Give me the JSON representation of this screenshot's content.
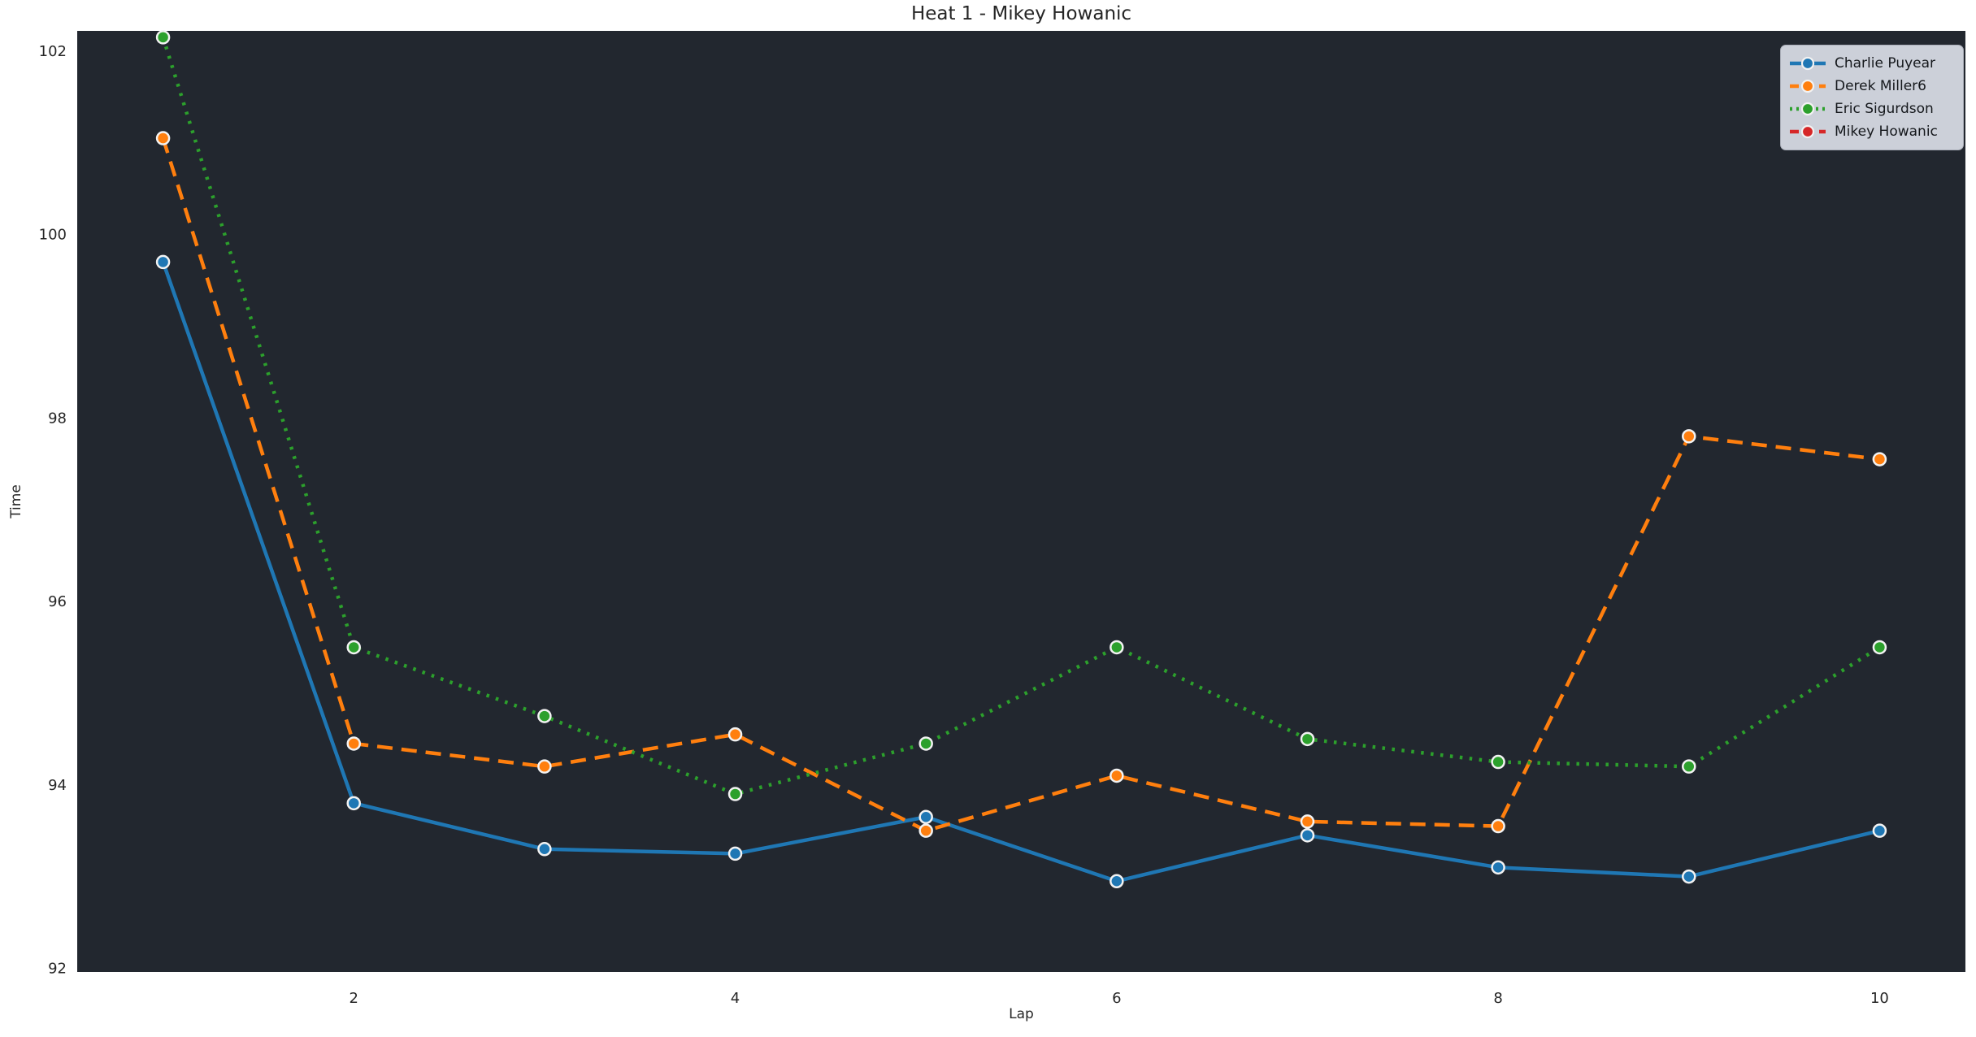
{
  "window": {
    "title": "Heat 1 - Mikey Howanic"
  },
  "chart_data": {
    "type": "line",
    "title": "Heat 1 - Mikey Howanic",
    "xlabel": "Lap",
    "ylabel": "Time",
    "x": [
      1,
      2,
      3,
      4,
      5,
      6,
      7,
      8,
      9,
      10
    ],
    "xticks": [
      2,
      4,
      6,
      8,
      10
    ],
    "yticks": [
      92,
      94,
      96,
      98,
      100,
      102
    ],
    "xlim": [
      0.55,
      10.45
    ],
    "ylim": [
      91.96,
      102.22
    ],
    "grid": false,
    "legend_position": "upper right",
    "colors": {
      "figure_background": "#ffffff",
      "plot_background": "#22272f",
      "tick_label": "#262626",
      "legend_background": "#ccd0d9",
      "legend_border": "#a9adb7",
      "legend_text": "#15181c",
      "marker_edge": "#f2f2f2"
    },
    "series": [
      {
        "name": "Charlie Puyear",
        "color": "#1f77b4",
        "linestyle": "solid",
        "marker": "circle",
        "values": [
          99.7,
          93.8,
          93.3,
          93.25,
          93.65,
          92.95,
          93.45,
          93.1,
          93.0,
          93.5
        ]
      },
      {
        "name": "Derek Miller6",
        "color": "#ff7f0e",
        "linestyle": "dashed",
        "marker": "circle",
        "values": [
          101.05,
          94.45,
          94.2,
          94.55,
          93.5,
          94.1,
          93.6,
          93.55,
          97.8,
          97.55
        ]
      },
      {
        "name": "Eric Sigurdson",
        "color": "#2ca02c",
        "linestyle": "dotted",
        "marker": "circle",
        "values": [
          102.15,
          95.5,
          94.75,
          93.9,
          94.45,
          95.5,
          94.5,
          94.25,
          94.2,
          95.5
        ]
      },
      {
        "name": "Mikey Howanic",
        "color": "#d62728",
        "linestyle": "dashed",
        "marker": "circle",
        "values": []
      }
    ]
  }
}
